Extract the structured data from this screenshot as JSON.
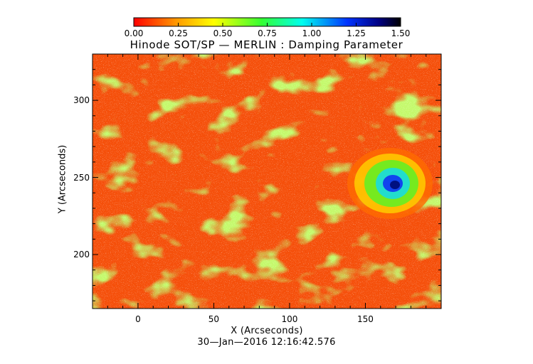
{
  "chart_data": {
    "type": "heatmap",
    "title": "Hinode SOT/SP — MERLIN : Damping Parameter",
    "xlabel": "X (Arcseconds)",
    "ylabel": "Y (Arcseconds)",
    "date_label": "30—Jan—2016 12:16:42.576",
    "xlim": [
      -30,
      200
    ],
    "ylim": [
      165,
      330
    ],
    "x_ticks": [
      0,
      50,
      100,
      150
    ],
    "y_ticks": [
      200,
      250,
      300
    ],
    "colorbar": {
      "range": [
        0.0,
        1.5
      ],
      "ticks": [
        "0.00",
        "0.25",
        "0.50",
        "0.75",
        "1.00",
        "1.25",
        "1.50"
      ],
      "colors": [
        "#ff0000",
        "#ff9900",
        "#ffff00",
        "#33ff33",
        "#00ffee",
        "#0033ff",
        "#000080",
        "#000000"
      ]
    },
    "grid": false
  }
}
